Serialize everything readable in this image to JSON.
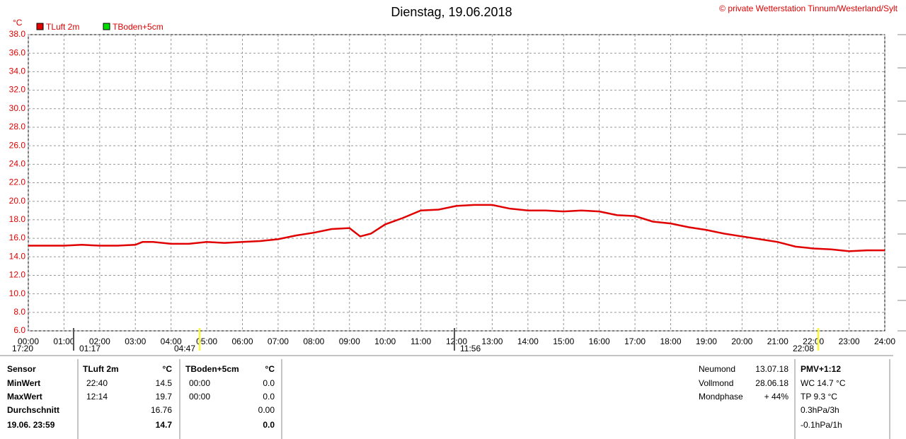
{
  "chart_data": {
    "type": "line",
    "title": "Dienstag, 19.06.2018",
    "credit": "© private Wetterstation Tinnum/Westerland/Sylt",
    "y_unit": "°C",
    "x": [
      0,
      0.5,
      1,
      1.5,
      2,
      2.5,
      3,
      3.2,
      3.5,
      4,
      4.5,
      5,
      5.5,
      6,
      6.5,
      7,
      7.5,
      8,
      8.5,
      9,
      9.3,
      9.6,
      10,
      10.5,
      11,
      11.5,
      12,
      12.5,
      13,
      13.5,
      14,
      14.5,
      15,
      15.5,
      16,
      16.5,
      17,
      17.5,
      18,
      18.5,
      19,
      19.5,
      20,
      20.5,
      21,
      21.5,
      22,
      22.5,
      23,
      23.5,
      24
    ],
    "series": [
      {
        "name": "TLuft 2m",
        "color": "#e00000",
        "values": [
          15.2,
          15.2,
          15.2,
          15.3,
          15.2,
          15.2,
          15.3,
          15.6,
          15.6,
          15.4,
          15.4,
          15.6,
          15.5,
          15.6,
          15.7,
          15.9,
          16.3,
          16.6,
          17.0,
          17.1,
          16.2,
          16.5,
          17.5,
          18.2,
          19.0,
          19.1,
          19.5,
          19.6,
          19.6,
          19.2,
          19.0,
          19.0,
          18.9,
          19.0,
          18.9,
          18.5,
          18.4,
          17.8,
          17.6,
          17.2,
          16.9,
          16.5,
          16.2,
          15.9,
          15.6,
          15.1,
          14.9,
          14.8,
          14.6,
          14.7,
          14.7
        ]
      },
      {
        "name": "TBoden+5cm",
        "color": "#00e000"
      }
    ],
    "xlim": [
      0,
      24
    ],
    "xticks": [
      {
        "value": 0,
        "label": "00:00"
      },
      {
        "value": 1,
        "label": "01:00"
      },
      {
        "value": 2,
        "label": "02:00"
      },
      {
        "value": 3,
        "label": "03:00"
      },
      {
        "value": 4,
        "label": "04:00"
      },
      {
        "value": 5,
        "label": "05:00"
      },
      {
        "value": 6,
        "label": "06:00"
      },
      {
        "value": 7,
        "label": "07:00"
      },
      {
        "value": 8,
        "label": "08:00"
      },
      {
        "value": 9,
        "label": "09:00"
      },
      {
        "value": 10,
        "label": "10:00"
      },
      {
        "value": 11,
        "label": "11:00"
      },
      {
        "value": 12,
        "label": "12:00"
      },
      {
        "value": 13,
        "label": "13:00"
      },
      {
        "value": 14,
        "label": "14:00"
      },
      {
        "value": 15,
        "label": "15:00"
      },
      {
        "value": 16,
        "label": "16:00"
      },
      {
        "value": 17,
        "label": "17:00"
      },
      {
        "value": 18,
        "label": "18:00"
      },
      {
        "value": 19,
        "label": "19:00"
      },
      {
        "value": 20,
        "label": "20:00"
      },
      {
        "value": 21,
        "label": "21:00"
      },
      {
        "value": 22,
        "label": "22:00"
      },
      {
        "value": 23,
        "label": "23:00"
      },
      {
        "value": 24,
        "label": "24:00"
      }
    ],
    "ylim": [
      6,
      38
    ],
    "yticks": [
      {
        "value": 6,
        "label": "6.0"
      },
      {
        "value": 8,
        "label": "8.0"
      },
      {
        "value": 10,
        "label": "10.0"
      },
      {
        "value": 12,
        "label": "12.0"
      },
      {
        "value": 14,
        "label": "14.0"
      },
      {
        "value": 16,
        "label": "16.0"
      },
      {
        "value": 18,
        "label": "18.0"
      },
      {
        "value": 20,
        "label": "20.0"
      },
      {
        "value": 22,
        "label": "22.0"
      },
      {
        "value": 24,
        "label": "24.0"
      },
      {
        "value": 26,
        "label": "26.0"
      },
      {
        "value": 28,
        "label": "28.0"
      },
      {
        "value": 30,
        "label": "30.0"
      },
      {
        "value": 32,
        "label": "32.0"
      },
      {
        "value": 34,
        "label": "34.0"
      },
      {
        "value": 36,
        "label": "36.0"
      },
      {
        "value": 38,
        "label": "38.0"
      }
    ],
    "grid": true,
    "time_markers": [
      "17:20",
      "01:17",
      "04:47",
      "11:56",
      "22:08"
    ]
  },
  "stats": {
    "rows": [
      [
        "Sensor",
        "TLuft 2m",
        "°C",
        "TBoden+5cm",
        "°C"
      ],
      [
        "MinWert",
        "22:40",
        "14.5",
        "00:00",
        "0.0"
      ],
      [
        "MaxWert",
        "12:14",
        "19.7",
        "00:00",
        "0.0"
      ],
      [
        "Durchschnitt",
        null,
        "16.76",
        null,
        "0.00"
      ],
      [
        "19.06. 23:59",
        null,
        "14.7",
        null,
        "0.0"
      ]
    ]
  },
  "moon": [
    [
      "Neumond",
      "13.07.18"
    ],
    [
      "Vollmond",
      "28.06.18"
    ],
    [
      "Mondphase",
      "+ 44%"
    ]
  ],
  "extra": [
    "PMV+1:12",
    "WC 14.7 °C",
    "TP 9.3 °C",
    "0.3hPa/3h",
    "-0.1hPa/1h"
  ]
}
